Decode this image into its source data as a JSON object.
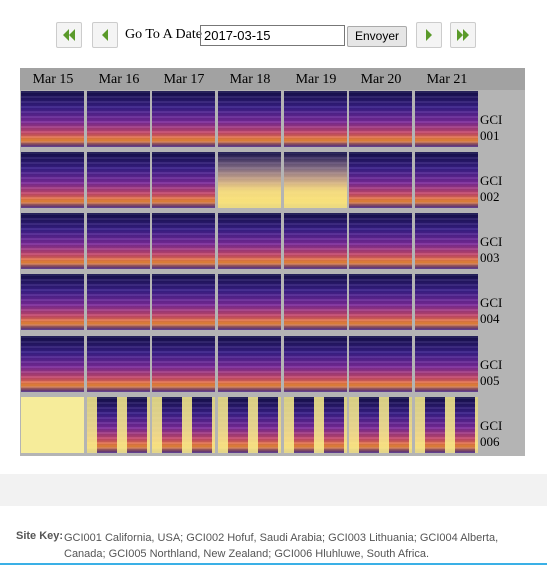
{
  "date_picker": {
    "label": "Go To A Date",
    "value": "2017-03-15",
    "submit": "Envoyer"
  },
  "grid": {
    "columns": [
      "Mar 15",
      "Mar 16",
      "Mar 17",
      "Mar 18",
      "Mar 19",
      "Mar 20",
      "Mar 21"
    ],
    "rows": [
      "GCI 001",
      "GCI 002",
      "GCI 003",
      "GCI 004",
      "GCI 005",
      "GCI 006"
    ]
  },
  "site_key": {
    "label": "Site Key:",
    "text": "GCI001 California, USA; GCI002 Hofuf, Saudi Arabia; GCI003 Lithuania; GCI004 Alberta, Canada; GCI005 Northland, New Zealand; GCI006 Hluhluwe, South Africa."
  }
}
